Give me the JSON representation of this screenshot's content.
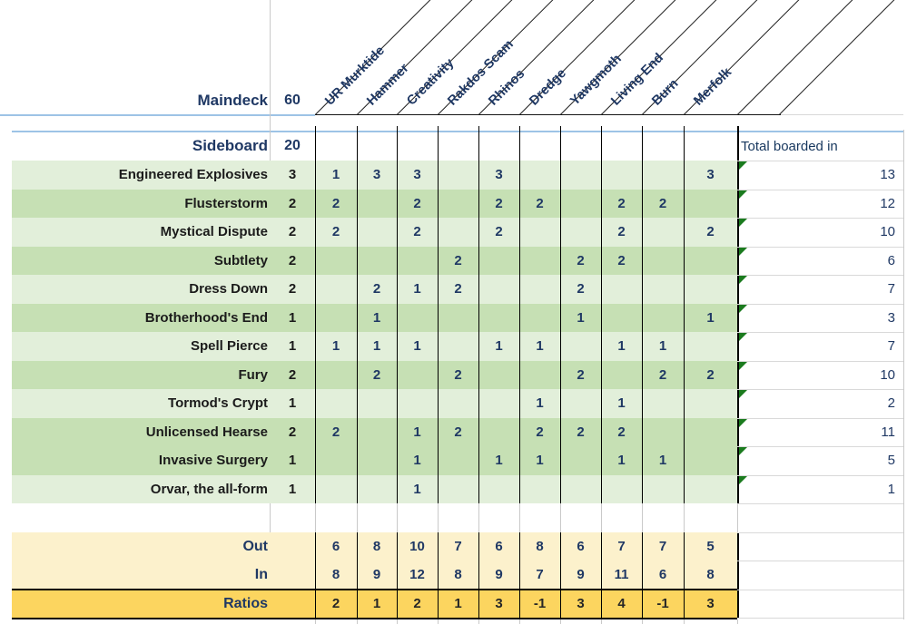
{
  "title_row": {
    "label": "Maindeck",
    "count": "60"
  },
  "archetypes": [
    "UR Murktide",
    "Hammer",
    "Creativity",
    "Rakdos Scam",
    "Rhinos",
    "Dredge",
    "Yawgmoth",
    "Living End",
    "Burn",
    "Merfolk"
  ],
  "sideboard_row": {
    "label": "Sideboard",
    "count": "20",
    "total_header": "Total boarded in"
  },
  "cards": [
    {
      "name": "Engineered Explosives",
      "count": 3,
      "cells": [
        "1",
        "3",
        "3",
        "",
        "3",
        "",
        "",
        "",
        "",
        "3"
      ],
      "total": 13,
      "shade": "light"
    },
    {
      "name": "Flusterstorm",
      "count": 2,
      "cells": [
        "2",
        "",
        "2",
        "",
        "2",
        "2",
        "",
        "2",
        "2",
        ""
      ],
      "total": 12,
      "shade": "dark"
    },
    {
      "name": "Mystical Dispute",
      "count": 2,
      "cells": [
        "2",
        "",
        "2",
        "",
        "2",
        "",
        "",
        "2",
        "",
        "2"
      ],
      "total": 10,
      "shade": "light"
    },
    {
      "name": "Subtlety",
      "count": 2,
      "cells": [
        "",
        "",
        "",
        "2",
        "",
        "",
        "2",
        "2",
        "",
        ""
      ],
      "total": 6,
      "shade": "dark"
    },
    {
      "name": "Dress Down",
      "count": 2,
      "cells": [
        "",
        "2",
        "1",
        "2",
        "",
        "",
        "2",
        "",
        "",
        ""
      ],
      "total": 7,
      "shade": "light"
    },
    {
      "name": "Brotherhood's End",
      "count": 1,
      "cells": [
        "",
        "1",
        "",
        "",
        "",
        "",
        "1",
        "",
        "",
        "1"
      ],
      "total": 3,
      "shade": "dark"
    },
    {
      "name": "Spell Pierce",
      "count": 1,
      "cells": [
        "1",
        "1",
        "1",
        "",
        "1",
        "1",
        "",
        "1",
        "1",
        ""
      ],
      "total": 7,
      "shade": "light"
    },
    {
      "name": "Fury",
      "count": 2,
      "cells": [
        "",
        "2",
        "",
        "2",
        "",
        "",
        "2",
        "",
        "2",
        "2"
      ],
      "total": 10,
      "shade": "dark"
    },
    {
      "name": "Tormod's Crypt",
      "count": 1,
      "cells": [
        "",
        "",
        "",
        "",
        "",
        "1",
        "",
        "1",
        "",
        ""
      ],
      "total": 2,
      "shade": "light"
    },
    {
      "name": "Unlicensed Hearse",
      "count": 2,
      "cells": [
        "2",
        "",
        "1",
        "2",
        "",
        "2",
        "2",
        "2",
        "",
        ""
      ],
      "total": 11,
      "shade": "dark"
    },
    {
      "name": "Invasive Surgery",
      "count": 1,
      "cells": [
        "",
        "",
        "1",
        "",
        "1",
        "1",
        "",
        "1",
        "1",
        ""
      ],
      "total": 5,
      "shade": "dark"
    },
    {
      "name": "Orvar, the all-form",
      "count": 1,
      "cells": [
        "",
        "",
        "1",
        "",
        "",
        "",
        "",
        "",
        "",
        ""
      ],
      "total": 1,
      "shade": "light"
    }
  ],
  "summary": {
    "out_label": "Out",
    "in_label": "In",
    "ratios_label": "Ratios",
    "out": [
      6,
      8,
      10,
      7,
      6,
      8,
      6,
      7,
      7,
      5
    ],
    "in": [
      8,
      9,
      12,
      8,
      9,
      7,
      9,
      11,
      6,
      8
    ],
    "ratios": [
      2,
      1,
      2,
      1,
      3,
      -1,
      3,
      4,
      -1,
      3
    ]
  },
  "colors": {
    "row_light": "#E2EFDA",
    "row_dark": "#C6E0B4",
    "summary_bg": "#FCF1CC",
    "ratios_bg": "#FCD55F",
    "navy_text": "#1F3864",
    "triangle_green": "#1B7B1E",
    "blue_line": "#9DC3E6",
    "grid_black": "#000000"
  }
}
